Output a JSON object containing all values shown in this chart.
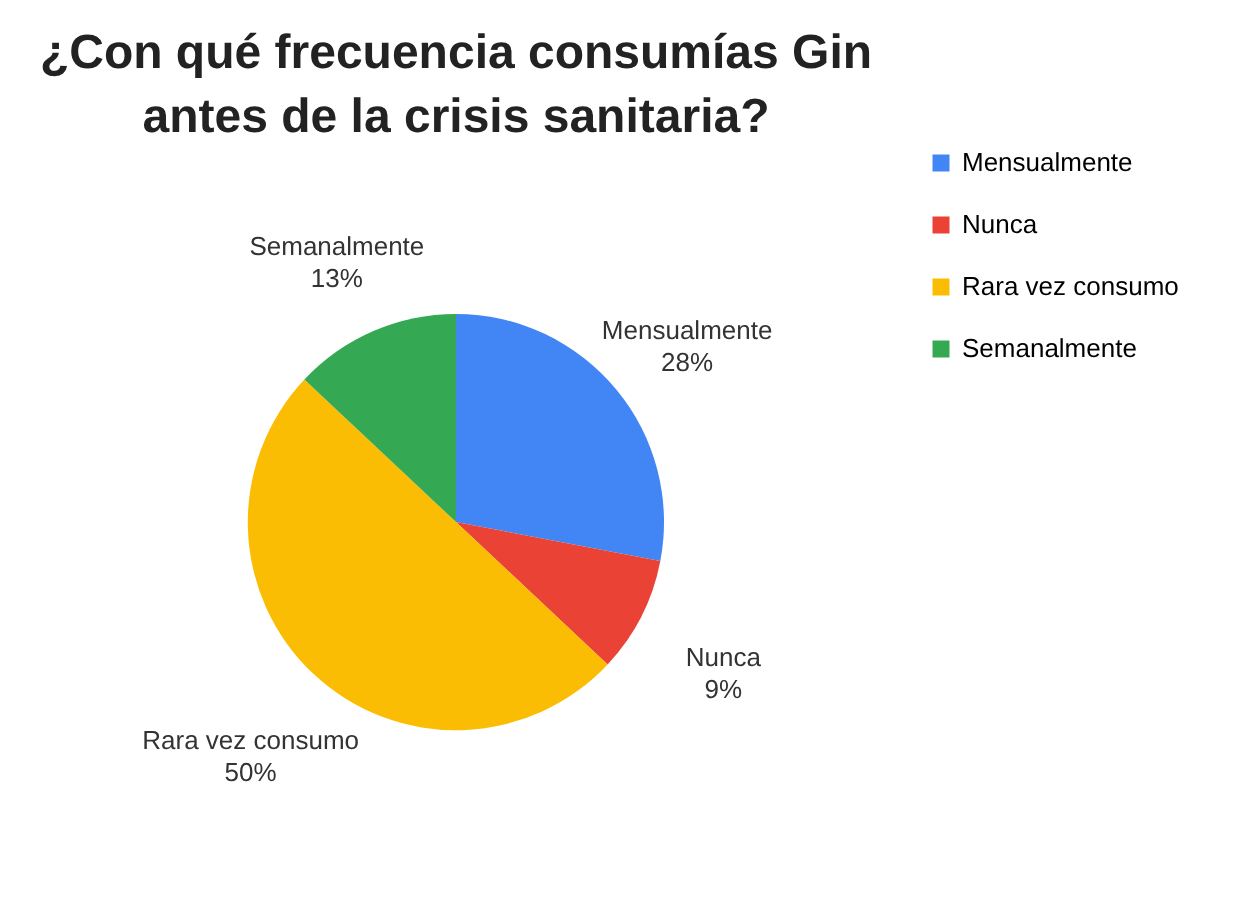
{
  "chart_data": {
    "type": "pie",
    "title": "¿Con qué frecuencia consumías Gin\nantes de la crisis sanitaria?",
    "categories": [
      "Mensualmente",
      "Nunca",
      "Rara vez consumo",
      "Semanalmente"
    ],
    "values": [
      28,
      9,
      50,
      13
    ],
    "colors": [
      "#4285f4",
      "#ea4335",
      "#fbbc04",
      "#34a853"
    ],
    "value_labels": [
      "28%",
      "9%",
      "50%",
      "13%"
    ],
    "legend": "right"
  }
}
